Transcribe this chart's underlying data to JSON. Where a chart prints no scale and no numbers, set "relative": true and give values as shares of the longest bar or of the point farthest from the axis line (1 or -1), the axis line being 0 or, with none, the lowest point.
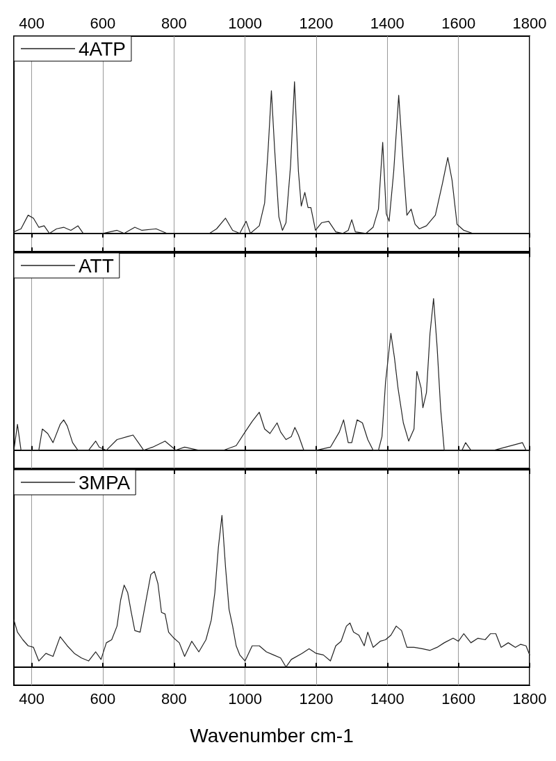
{
  "chart_data": [
    {
      "type": "line",
      "relative": true,
      "xlim": [
        350,
        1800
      ],
      "xticks": [
        400,
        600,
        800,
        1000,
        1200,
        1400,
        1600,
        1800
      ],
      "grid": "x",
      "legend": "top left",
      "marker": "none",
      "line_style": "solid",
      "series": [
        {
          "name": "4ATP",
          "color": "#222222",
          "x": [
            350,
            370,
            390,
            405,
            420,
            435,
            450,
            470,
            490,
            510,
            530,
            545,
            600,
            640,
            660,
            690,
            710,
            750,
            780,
            900,
            920,
            945,
            965,
            985,
            1003,
            1015,
            1040,
            1055,
            1065,
            1074,
            1083,
            1095,
            1105,
            1115,
            1128,
            1139,
            1150,
            1158,
            1168,
            1177,
            1185,
            1198,
            1215,
            1235,
            1255,
            1275,
            1290,
            1300,
            1310,
            1340,
            1360,
            1375,
            1387,
            1397,
            1405,
            1418,
            1432,
            1446,
            1455,
            1467,
            1478,
            1490,
            1510,
            1535,
            1555,
            1570,
            1582,
            1596,
            1615,
            1640,
            1800
          ],
          "values": [
            0.01,
            0.03,
            0.12,
            0.1,
            0.04,
            0.05,
            0,
            0.03,
            0.04,
            0.02,
            0.05,
            0,
            0,
            0.02,
            0,
            0.04,
            0.02,
            0.03,
            0,
            0,
            0.03,
            0.1,
            0.02,
            0,
            0.08,
            0,
            0.05,
            0.2,
            0.56,
            0.94,
            0.56,
            0.11,
            0.02,
            0.07,
            0.45,
            1.0,
            0.41,
            0.18,
            0.27,
            0.17,
            0.17,
            0.02,
            0.07,
            0.08,
            0.01,
            0,
            0.02,
            0.09,
            0.01,
            0,
            0.04,
            0.16,
            0.6,
            0.13,
            0.08,
            0.41,
            0.91,
            0.41,
            0.12,
            0.16,
            0.06,
            0.03,
            0.05,
            0.12,
            0.33,
            0.5,
            0.35,
            0.06,
            0.02,
            0,
            0
          ]
        }
      ]
    },
    {
      "type": "line",
      "relative": true,
      "xlim": [
        350,
        1800
      ],
      "xticks": [
        400,
        600,
        800,
        1000,
        1200,
        1400,
        1600,
        1800
      ],
      "tick_labels": false,
      "grid": "x",
      "legend": "top left",
      "marker": "none",
      "line_style": "solid",
      "series": [
        {
          "name": "ATT",
          "color": "#222222",
          "x": [
            350,
            360,
            370,
            395,
            420,
            430,
            445,
            460,
            480,
            490,
            500,
            515,
            530,
            560,
            580,
            590,
            610,
            640,
            670,
            685,
            700,
            715,
            740,
            775,
            790,
            805,
            830,
            870,
            940,
            975,
            1000,
            1020,
            1040,
            1055,
            1070,
            1090,
            1100,
            1115,
            1130,
            1140,
            1150,
            1165,
            1200,
            1240,
            1265,
            1277,
            1290,
            1300,
            1315,
            1330,
            1345,
            1360,
            1375,
            1385,
            1395,
            1410,
            1420,
            1430,
            1445,
            1460,
            1475,
            1483,
            1495,
            1500,
            1510,
            1520,
            1530,
            1540,
            1550,
            1560,
            1610,
            1620,
            1635,
            1700,
            1780,
            1790,
            1800
          ],
          "values": [
            0,
            0.17,
            0,
            0,
            0,
            0.14,
            0.11,
            0.05,
            0.17,
            0.2,
            0.16,
            0.05,
            0,
            0,
            0.06,
            0.02,
            0,
            0.07,
            0.09,
            0.1,
            0.05,
            0,
            0.02,
            0.06,
            0.03,
            0,
            0.02,
            0,
            0,
            0.03,
            0.12,
            0.19,
            0.25,
            0.14,
            0.11,
            0.18,
            0.12,
            0.07,
            0.09,
            0.15,
            0.1,
            0,
            0,
            0.02,
            0.12,
            0.2,
            0.05,
            0.05,
            0.2,
            0.18,
            0.07,
            0,
            0,
            0.09,
            0.45,
            0.77,
            0.61,
            0.41,
            0.18,
            0.06,
            0.14,
            0.52,
            0.41,
            0.28,
            0.38,
            0.77,
            1.0,
            0.68,
            0.27,
            0,
            0,
            0.05,
            0,
            0,
            0.05,
            0,
            0
          ]
        }
      ]
    },
    {
      "type": "line",
      "relative": true,
      "xlim": [
        350,
        1800
      ],
      "xticks": [
        400,
        600,
        800,
        1000,
        1200,
        1400,
        1600,
        1800
      ],
      "xlabel": "Wavenumber cm-1",
      "grid": "x",
      "legend": "top left",
      "marker": "none",
      "line_style": "solid",
      "series": [
        {
          "name": "3MPA",
          "color": "#222222",
          "x": [
            350,
            360,
            375,
            390,
            405,
            420,
            440,
            460,
            480,
            500,
            520,
            540,
            560,
            580,
            595,
            610,
            625,
            640,
            650,
            660,
            670,
            680,
            690,
            705,
            720,
            735,
            745,
            755,
            765,
            775,
            785,
            800,
            815,
            830,
            850,
            870,
            890,
            905,
            915,
            925,
            935,
            945,
            955,
            965,
            975,
            985,
            1000,
            1020,
            1040,
            1060,
            1080,
            1100,
            1115,
            1130,
            1160,
            1180,
            1200,
            1220,
            1240,
            1255,
            1270,
            1285,
            1295,
            1305,
            1320,
            1335,
            1345,
            1360,
            1380,
            1395,
            1410,
            1425,
            1440,
            1455,
            1475,
            1500,
            1520,
            1540,
            1560,
            1585,
            1600,
            1615,
            1635,
            1655,
            1675,
            1690,
            1705,
            1720,
            1740,
            1760,
            1775,
            1790,
            1800
          ],
          "values": [
            0.31,
            0.23,
            0.18,
            0.14,
            0.13,
            0.04,
            0.09,
            0.07,
            0.2,
            0.14,
            0.09,
            0.06,
            0.04,
            0.1,
            0.05,
            0.16,
            0.18,
            0.27,
            0.44,
            0.54,
            0.49,
            0.36,
            0.24,
            0.23,
            0.42,
            0.61,
            0.63,
            0.55,
            0.36,
            0.35,
            0.23,
            0.19,
            0.16,
            0.07,
            0.17,
            0.1,
            0.18,
            0.31,
            0.49,
            0.79,
            1.0,
            0.66,
            0.38,
            0.27,
            0.14,
            0.08,
            0.04,
            0.14,
            0.14,
            0.1,
            0.08,
            0.06,
            0,
            0.05,
            0.09,
            0.12,
            0.09,
            0.08,
            0.04,
            0.14,
            0.17,
            0.27,
            0.29,
            0.23,
            0.21,
            0.14,
            0.23,
            0.13,
            0.17,
            0.18,
            0.21,
            0.27,
            0.24,
            0.13,
            0.13,
            0.12,
            0.11,
            0.13,
            0.16,
            0.19,
            0.17,
            0.22,
            0.16,
            0.19,
            0.18,
            0.22,
            0.22,
            0.13,
            0.16,
            0.13,
            0.15,
            0.14,
            0.08
          ]
        }
      ]
    }
  ]
}
